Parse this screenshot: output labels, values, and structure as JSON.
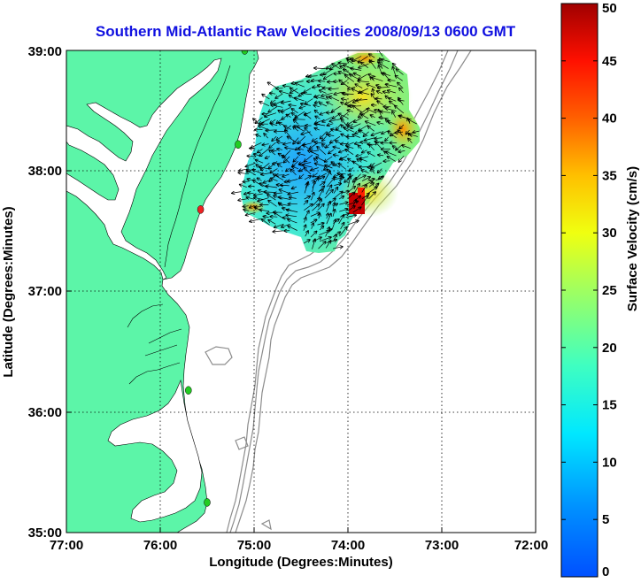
{
  "title": "Southern Mid-Atlantic Raw Velocities 2008/09/13 0600 GMT",
  "xlabel": "Longitude (Degrees:Minutes)",
  "ylabel": "Latitude (Degrees:Minutes)",
  "colorbar": {
    "label": "Surface Velocity (cm/s)",
    "ticks": [
      "0",
      "5",
      "10",
      "15",
      "20",
      "25",
      "30",
      "35",
      "40",
      "45",
      "50"
    ],
    "range": [
      0,
      50
    ],
    "colormap": "jet"
  },
  "map": {
    "x_ticks": [
      "77:00",
      "76:00",
      "75:00",
      "74:00",
      "73:00",
      "72:00"
    ],
    "y_ticks": [
      "39:00",
      "38:00",
      "37:00",
      "36:00",
      "35:00"
    ],
    "lon_range": [
      -77,
      -72
    ],
    "lat_range": [
      35,
      39
    ],
    "grid": "dotted",
    "land_color": "#5cf5a8",
    "bathymetry_color": "#8c8c8c"
  },
  "title_color": "#1010e0",
  "stations": [
    {
      "lon": -75.1,
      "lat": 39.0,
      "color": "#22cc22"
    },
    {
      "lon": -75.17,
      "lat": 38.22,
      "color": "#22cc22"
    },
    {
      "lon": -75.57,
      "lat": 37.68,
      "color": "#ee2222"
    },
    {
      "lon": -75.7,
      "lat": 36.18,
      "color": "#22cc22"
    },
    {
      "lon": -75.5,
      "lat": 35.25,
      "color": "#22cc22"
    }
  ]
}
